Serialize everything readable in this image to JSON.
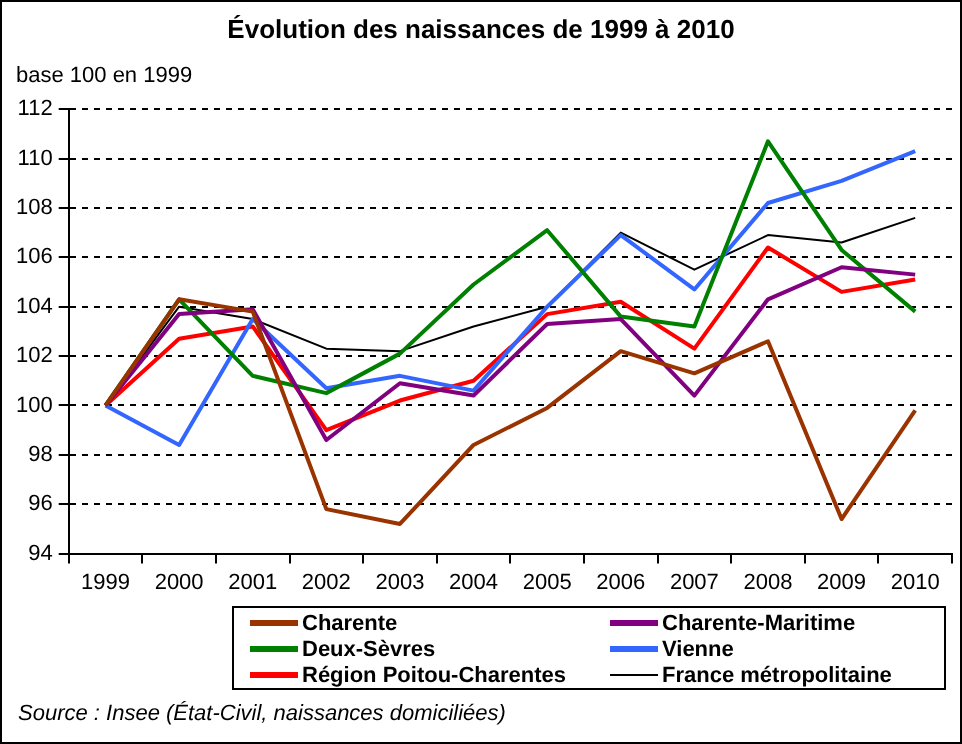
{
  "chart_data": {
    "type": "line",
    "title": "Évolution des naissances de 1999 à 2010",
    "ylabel": "base 100 en 1999",
    "categories": [
      "1999",
      "2000",
      "2001",
      "2002",
      "2003",
      "2004",
      "2005",
      "2006",
      "2007",
      "2008",
      "2009",
      "2010"
    ],
    "series": [
      {
        "name": "Charente",
        "color": "#993300",
        "values": [
          100,
          104.3,
          103.8,
          95.8,
          95.2,
          98.4,
          99.9,
          102.2,
          101.3,
          102.6,
          95.4,
          99.8
        ]
      },
      {
        "name": "Charente-Maritime",
        "color": "#800080",
        "values": [
          100,
          103.7,
          103.9,
          98.6,
          100.9,
          100.4,
          103.3,
          103.5,
          100.4,
          104.3,
          105.6,
          105.3
        ]
      },
      {
        "name": "Deux-Sèvres",
        "color": "#008000",
        "values": [
          100,
          104.3,
          101.2,
          100.5,
          102.1,
          104.9,
          107.1,
          103.6,
          103.2,
          110.7,
          106.3,
          103.8
        ]
      },
      {
        "name": "Vienne",
        "color": "#3366ff",
        "values": [
          100,
          98.4,
          103.5,
          100.7,
          101.2,
          100.6,
          104.0,
          106.9,
          104.7,
          108.2,
          109.1,
          110.3
        ]
      },
      {
        "name": "Région Poitou-Charentes",
        "color": "#ff0000",
        "values": [
          100,
          102.7,
          103.2,
          99.0,
          100.2,
          101.0,
          103.7,
          104.2,
          102.3,
          106.4,
          104.6,
          105.1
        ]
      },
      {
        "name": "France métropolitaine",
        "color": "#000000",
        "values": [
          100,
          104.0,
          103.5,
          102.3,
          102.2,
          103.2,
          104.0,
          107.0,
          105.5,
          106.9,
          106.6,
          107.6
        ]
      }
    ],
    "ylim": [
      94,
      112
    ],
    "yticks": [
      94,
      96,
      98,
      100,
      102,
      104,
      106,
      108,
      110,
      112
    ],
    "grid": "y",
    "legend": "bottom",
    "marker": "none",
    "line_style": "solid",
    "annotations": [
      "Source : Insee (État-Civil, naissances domiciliées)"
    ]
  }
}
